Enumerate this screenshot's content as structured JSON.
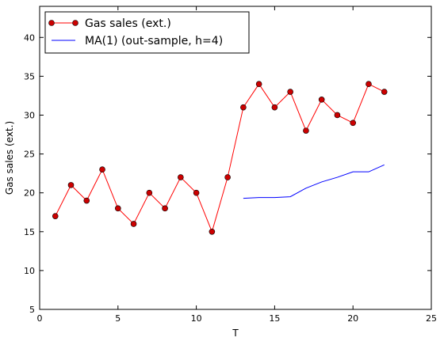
{
  "chart_data": {
    "type": "line",
    "xlabel": "T",
    "ylabel": "Gas sales (ext.)",
    "xlim": [
      0,
      25
    ],
    "ylim": [
      5,
      44
    ],
    "xticks": [
      0,
      5,
      10,
      15,
      20,
      25
    ],
    "yticks": [
      5,
      10,
      15,
      20,
      25,
      30,
      35,
      40
    ],
    "grid": false,
    "legend_position": "top-left",
    "series": [
      {
        "name": "Gas sales (ext.)",
        "color": "#ff0000",
        "marker": "circle",
        "x": [
          1,
          2,
          3,
          4,
          5,
          6,
          7,
          8,
          9,
          10,
          11,
          12,
          13,
          14,
          15,
          16,
          17,
          18,
          19,
          20,
          21,
          22
        ],
        "y": [
          17,
          21,
          19,
          23,
          18,
          16,
          20,
          18,
          22,
          20,
          15,
          22,
          31,
          34,
          31,
          33,
          28,
          32,
          30,
          29,
          34,
          33
        ]
      },
      {
        "name": "MA(1) (out-sample, h=4)",
        "color": "#0000ff",
        "marker": "none",
        "x": [
          13,
          14,
          15,
          16,
          17,
          18,
          19,
          20,
          21,
          22
        ],
        "y": [
          19.3,
          19.4,
          19.4,
          19.5,
          20.6,
          21.4,
          22.0,
          22.7,
          22.7,
          23.6
        ]
      }
    ]
  }
}
